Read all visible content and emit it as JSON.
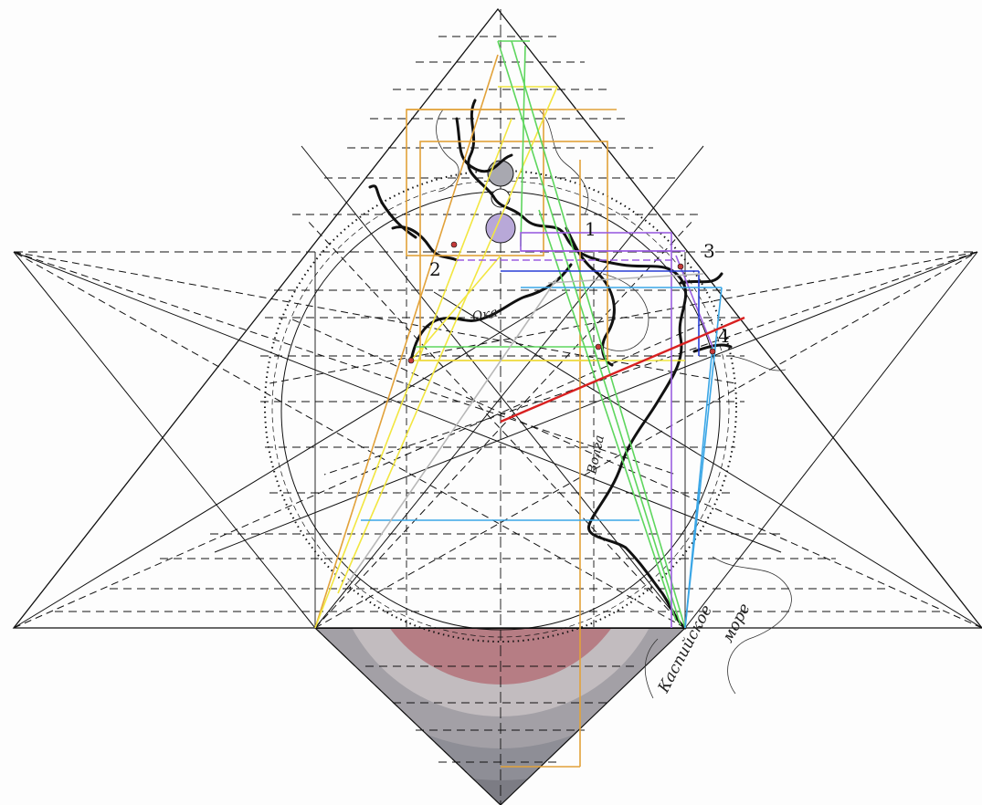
{
  "point_labels": [
    "1",
    "2",
    "3",
    "4"
  ],
  "river_labels": {
    "oka": "Ока",
    "volga": "Волга"
  },
  "sea_label": {
    "line1": "Каспийское",
    "line2": "море"
  },
  "colors": {
    "black": "#111111",
    "yellow": "#f2e640",
    "orange": "#e2a23a",
    "green": "#5ed65e",
    "violet": "#9b5fe0",
    "blue": "#2a3fd6",
    "lightblue": "#3aa6e6",
    "red": "#d82020",
    "gray": "#b8b8b8",
    "dome_red": "#b0707a",
    "dome_gray": "#8a8a90"
  }
}
